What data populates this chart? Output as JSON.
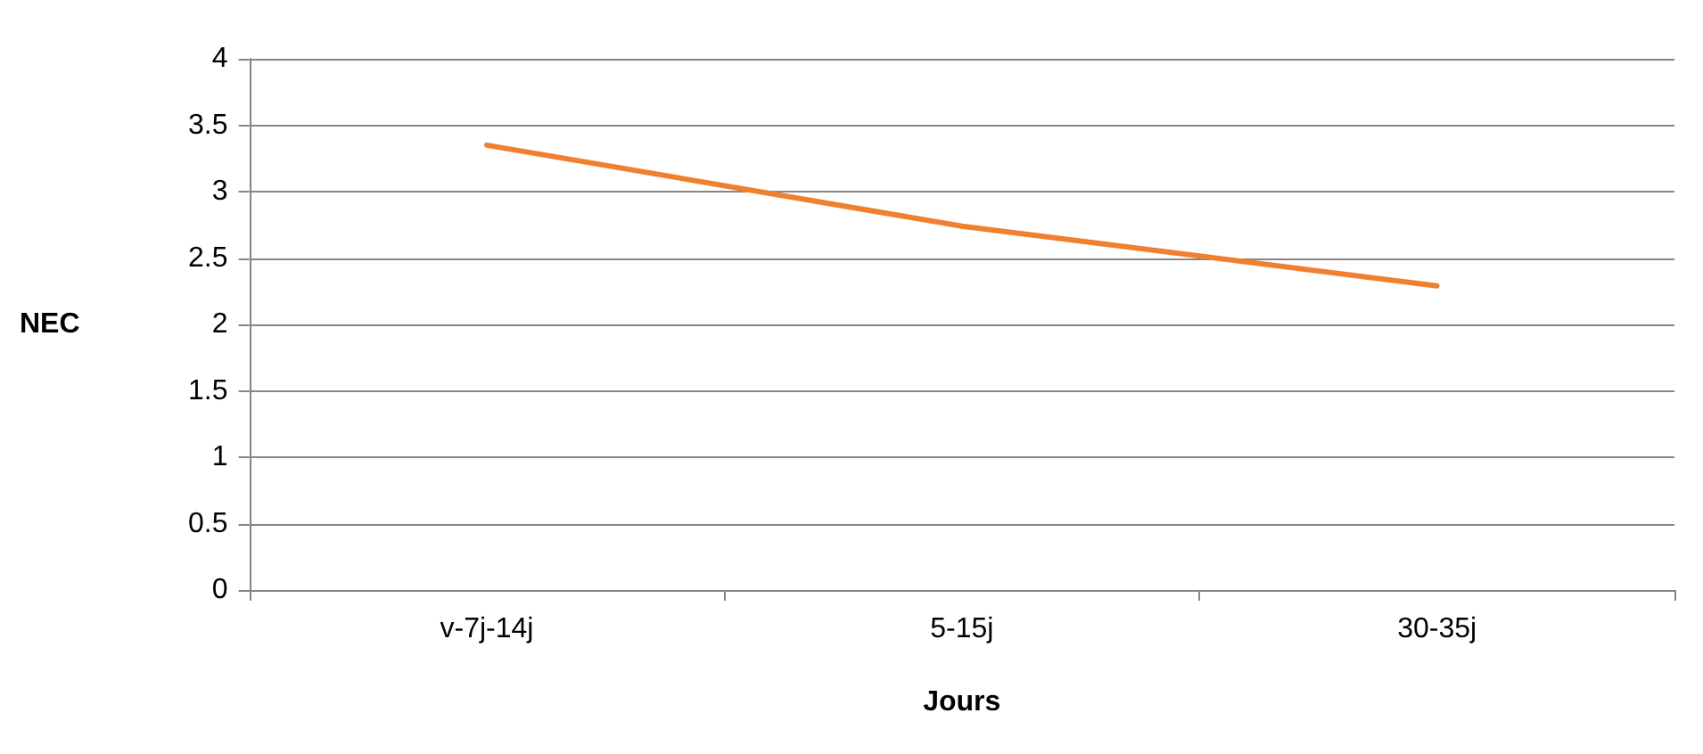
{
  "chart_data": {
    "type": "line",
    "xlabel": "Jours",
    "ylabel": "NEC",
    "categories": [
      "v-7j-14j",
      "5-15j",
      "30-35j"
    ],
    "series": [
      {
        "color": "#f07f30",
        "values": [
          3.35,
          2.74,
          2.29
        ]
      }
    ],
    "ylim": [
      0,
      4
    ],
    "yticks": [
      0,
      0.5,
      1,
      1.5,
      2,
      2.5,
      3,
      3.5,
      4
    ],
    "grid": "y",
    "marker": "none",
    "line_style": "solid"
  }
}
